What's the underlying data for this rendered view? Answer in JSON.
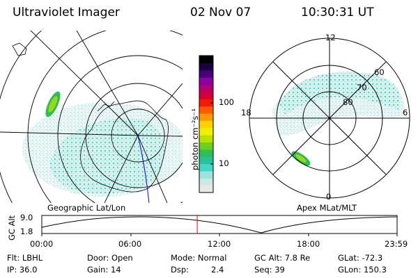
{
  "header": {
    "instrument": "Ultraviolet Imager",
    "date": "02 Nov 07",
    "time": "10:30:31 UT"
  },
  "geo_panel": {
    "caption": "Geographic Lat/Lon"
  },
  "polar_panel": {
    "caption": "Apex MLat/MLT",
    "mlt_labels": [
      "12",
      "18",
      "6",
      "0"
    ],
    "lat_labels": [
      "60",
      "70",
      "80"
    ]
  },
  "colorbar": {
    "unit_label": "photon cm⁻²s⁻¹",
    "tick_labels": [
      "100",
      "10"
    ],
    "colors": [
      "#e8e8e8",
      "#cfe8e6",
      "#9fe2dc",
      "#41d6c9",
      "#27c39f",
      "#2dbf55",
      "#6bcf1e",
      "#b6e300",
      "#eef200",
      "#ffd200",
      "#ff9a00",
      "#ff5a00",
      "#f21a00",
      "#d40030",
      "#b6006e",
      "#8a00a0",
      "#4a007a",
      "#1a0040",
      "#000000"
    ]
  },
  "altitude_plot": {
    "ylabel": "GC Alt",
    "ytick_max": "9.0",
    "ytick_min": "1.8",
    "xticks": [
      "00:00",
      "06:00",
      "12:00",
      "18:00",
      "23:59"
    ],
    "current_time_fraction": 0.4375
  },
  "info": {
    "filter": "Flt: LBHL",
    "ip": "IP: 36.0",
    "door": "Door: Open",
    "gain": "Gain: 14",
    "mode": "Mode: Normal",
    "dsp_label": "Dsp:",
    "dsp_value": "2.4",
    "gc_alt": "GC Alt: 7.8 Re",
    "seq": "Seq: 39",
    "glat": "GLat: -72.3",
    "glon": "GLon: 150.3"
  }
}
